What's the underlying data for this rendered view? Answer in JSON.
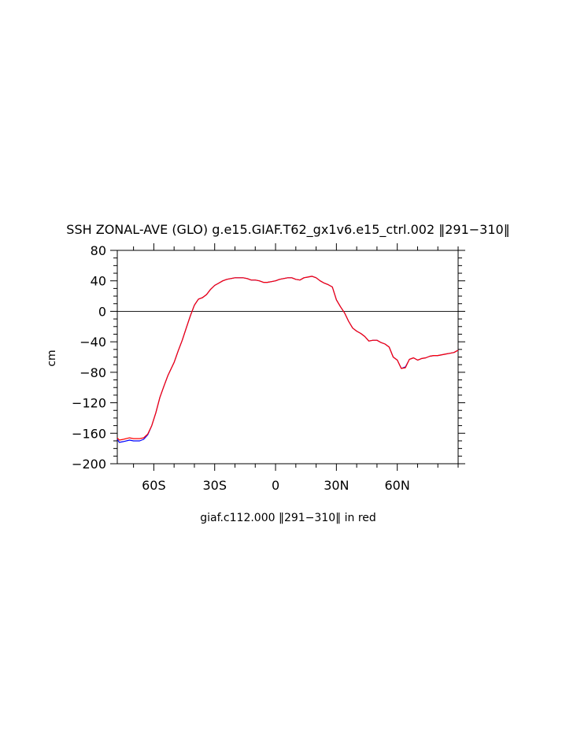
{
  "chart_data": {
    "type": "line",
    "title": "SSH ZONAL-AVE (GLO) g.e15.GIAF.T62_gx1v6.e15_ctrl.002 ‖291−310‖",
    "xlabel": "giaf.c112.000 ‖291−310‖ in red",
    "ylabel": "cm",
    "xlim": [
      -78,
      90
    ],
    "ylim": [
      -200,
      80
    ],
    "yticks": [
      80,
      40,
      0,
      -40,
      -80,
      -120,
      -160,
      -200
    ],
    "ytick_labels": [
      "80",
      "40",
      "0",
      "−40",
      "−80",
      "−120",
      "−160",
      "−200"
    ],
    "xticks": [
      -60,
      -30,
      0,
      30,
      60
    ],
    "xtick_labels": [
      "60S",
      "30S",
      "0",
      "30N",
      "60N"
    ],
    "zero_line": true,
    "grid": false,
    "series": [
      {
        "color": "#0000ff",
        "x": [
          -78,
          -77,
          -75,
          -72,
          -70,
          -67,
          -65,
          -63,
          -61,
          -59,
          -57,
          -55,
          -53,
          -50,
          -48,
          -46,
          -44,
          -42,
          -40,
          -38,
          -36,
          -34,
          -32,
          -30,
          -28,
          -26,
          -24,
          -22,
          -20,
          -18,
          -16,
          -14,
          -12,
          -10,
          -8,
          -6,
          -4,
          -2,
          0,
          2,
          4,
          6,
          8,
          10,
          12,
          14,
          16,
          18,
          20,
          22,
          24,
          26,
          28,
          30,
          32,
          34,
          36,
          38,
          40,
          42,
          44,
          46,
          48,
          50,
          52,
          54,
          56,
          58,
          60,
          62,
          64,
          66,
          68,
          70,
          72,
          74,
          76,
          78,
          80,
          82,
          84,
          86,
          88,
          90
        ],
        "y": [
          -168,
          -172,
          -171,
          -169,
          -170,
          -170,
          -168,
          -162,
          -150,
          -133,
          -113,
          -98,
          -84,
          -67,
          -52,
          -38,
          -22,
          -6,
          8,
          16,
          18,
          22,
          29,
          34,
          37,
          40,
          42,
          43,
          44,
          44,
          44,
          43,
          41,
          41,
          40,
          38,
          38,
          39,
          40,
          42,
          43,
          44,
          44,
          42,
          41,
          44,
          45,
          46,
          44,
          40,
          37,
          35,
          32,
          15,
          6,
          -2,
          -13,
          -22,
          -26,
          -29,
          -33,
          -39,
          -38,
          -38,
          -41,
          -43,
          -47,
          -60,
          -64,
          -75,
          -73,
          -63,
          -61,
          -64,
          -62,
          -61,
          -59,
          -58,
          -58,
          -57,
          -56,
          -55,
          -54,
          -51
        ]
      },
      {
        "color": "#ff0000",
        "x": [
          -78,
          -77,
          -75,
          -72,
          -70,
          -67,
          -65,
          -63,
          -61,
          -59,
          -57,
          -55,
          -53,
          -50,
          -48,
          -46,
          -44,
          -42,
          -40,
          -38,
          -36,
          -34,
          -32,
          -30,
          -28,
          -26,
          -24,
          -22,
          -20,
          -18,
          -16,
          -14,
          -12,
          -10,
          -8,
          -6,
          -4,
          -2,
          0,
          2,
          4,
          6,
          8,
          10,
          12,
          14,
          16,
          18,
          20,
          22,
          24,
          26,
          28,
          30,
          32,
          34,
          36,
          38,
          40,
          42,
          44,
          46,
          48,
          50,
          52,
          54,
          56,
          58,
          60,
          62,
          64,
          66,
          68,
          70,
          72,
          74,
          76,
          78,
          80,
          82,
          84,
          86,
          88,
          90
        ],
        "y": [
          -166,
          -169,
          -168,
          -166,
          -167,
          -167,
          -166,
          -161,
          -150,
          -133,
          -113,
          -98,
          -84,
          -67,
          -52,
          -38,
          -22,
          -6,
          8,
          16,
          18,
          22,
          29,
          34,
          37,
          40,
          42,
          43,
          44,
          44,
          44,
          43,
          41,
          41,
          40,
          38,
          38,
          39,
          40,
          42,
          43,
          44,
          44,
          42,
          41,
          44,
          45,
          46,
          44,
          40,
          37,
          35,
          32,
          15,
          6,
          -2,
          -13,
          -22,
          -26,
          -29,
          -33,
          -39,
          -38,
          -38,
          -41,
          -43,
          -47,
          -60,
          -64,
          -75,
          -74,
          -63,
          -61,
          -64,
          -62,
          -61,
          -59,
          -58,
          -58,
          -57,
          -56,
          -55,
          -54,
          -51
        ]
      }
    ]
  }
}
